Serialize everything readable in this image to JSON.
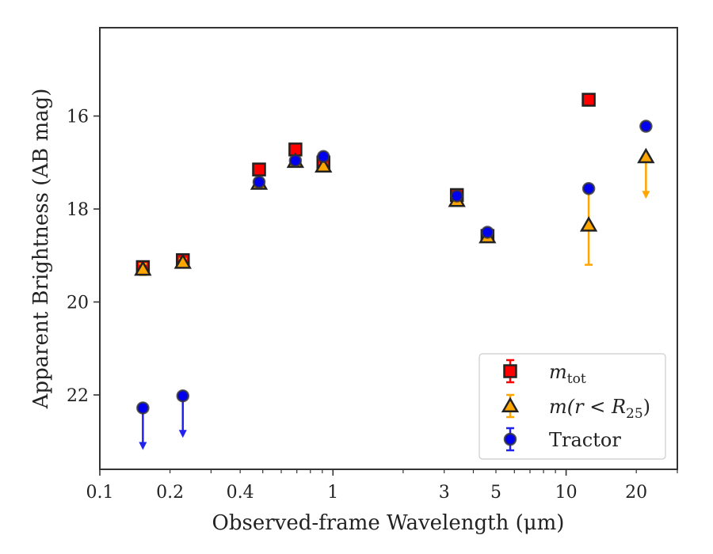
{
  "chart_data": {
    "type": "scatter",
    "xlabel": "Observed-frame Wavelength (μm)",
    "ylabel": "Apparent Brightness (AB mag)",
    "x_scale": "log",
    "xlim": [
      0.1,
      30
    ],
    "ylim": [
      23.6,
      14.1
    ],
    "y_inverted": true,
    "x_ticks": [
      0.1,
      0.2,
      0.4,
      1,
      3,
      5,
      10,
      20
    ],
    "x_tick_labels": [
      "0.1",
      "0.2",
      "0.4",
      "1",
      "3",
      "5",
      "10",
      "20"
    ],
    "y_ticks": [
      16,
      18,
      20,
      22
    ],
    "y_tick_labels": [
      "16",
      "18",
      "20",
      "22"
    ],
    "grid": false,
    "legend_position": "lower-right",
    "series": [
      {
        "name": "m_tot",
        "legend_label": {
          "base": "m",
          "sub": "tot"
        },
        "marker": "square",
        "face_color": "#ff0000",
        "edge_color": "#222222",
        "error_color": "#ff0000",
        "points": [
          {
            "x": 0.153,
            "y": 19.25,
            "err": 0.1
          },
          {
            "x": 0.227,
            "y": 19.1,
            "err": 0.08
          },
          {
            "x": 0.482,
            "y": 17.15,
            "err": 0.05
          },
          {
            "x": 0.69,
            "y": 16.72,
            "err": 0.05
          },
          {
            "x": 0.91,
            "y": 17.0,
            "err": 0.05
          },
          {
            "x": 3.4,
            "y": 17.7,
            "err": 0.05
          },
          {
            "x": 4.6,
            "y": 18.58,
            "err": 0.05
          },
          {
            "x": 12.5,
            "y": 15.65,
            "err": 0.05
          }
        ]
      },
      {
        "name": "m(r<R25)",
        "legend_label": {
          "text": "m(r < R",
          "sub": "25",
          "close": ")"
        },
        "marker": "triangle",
        "face_color": "#ffa500",
        "edge_color": "#222222",
        "error_color": "#ffa500",
        "points": [
          {
            "x": 0.153,
            "y": 19.3,
            "err": 0.12
          },
          {
            "x": 0.227,
            "y": 19.15,
            "err": 0.08
          },
          {
            "x": 0.482,
            "y": 17.45,
            "err": 0.05
          },
          {
            "x": 0.69,
            "y": 16.98,
            "err": 0.05
          },
          {
            "x": 0.91,
            "y": 17.08,
            "err": 0.05
          },
          {
            "x": 3.4,
            "y": 17.82,
            "err": 0.05
          },
          {
            "x": 4.6,
            "y": 18.6,
            "err": 0.05
          },
          {
            "x": 12.5,
            "y": 18.35,
            "err": 0.85
          },
          {
            "x": 22.0,
            "y": 16.88,
            "upper_limit": true
          }
        ]
      },
      {
        "name": "Tractor",
        "legend_label": {
          "text": "Tractor"
        },
        "marker": "circle",
        "face_color": "#0000ee",
        "edge_color": "#333333",
        "error_color": "#2222ee",
        "points": [
          {
            "x": 0.153,
            "y": 22.28,
            "upper_limit": true
          },
          {
            "x": 0.227,
            "y": 22.02,
            "upper_limit": true
          },
          {
            "x": 0.482,
            "y": 17.42,
            "err": 0.05
          },
          {
            "x": 0.69,
            "y": 16.96,
            "err": 0.05
          },
          {
            "x": 0.91,
            "y": 16.87,
            "err": 0.05
          },
          {
            "x": 3.4,
            "y": 17.72,
            "err": 0.05
          },
          {
            "x": 4.6,
            "y": 18.5,
            "err": 0.05
          },
          {
            "x": 12.5,
            "y": 17.56,
            "err": 0.05
          },
          {
            "x": 22.0,
            "y": 16.22,
            "err": 0.05
          }
        ]
      }
    ]
  }
}
